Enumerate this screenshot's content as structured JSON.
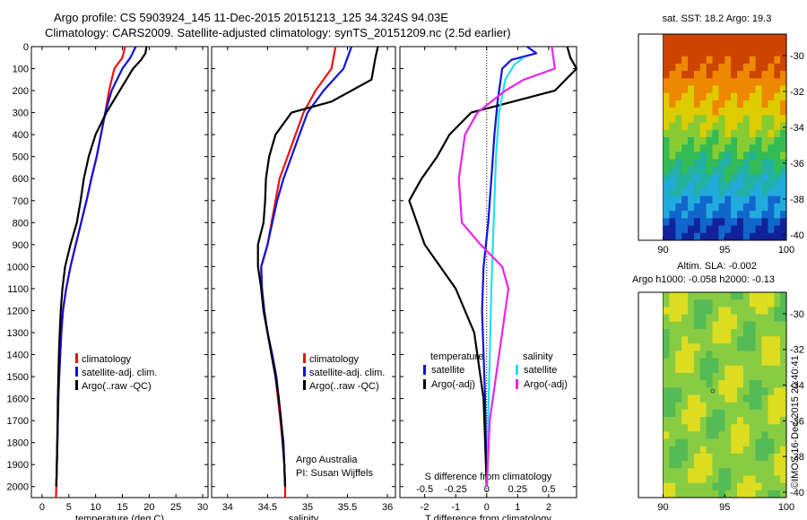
{
  "header": {
    "line1": "Argo profile: CS 5903924_145 11-Dec-2015 20151213_125 34.324S 94.03E",
    "line2": "Climatology: CARS2009. Satellite-adjusted climatology: synTS_20151209.nc (2.5d earlier)"
  },
  "credit": "©IMOS 16-Dec-2015 20:40:41",
  "colors": {
    "climatology": "#ee1111",
    "satellite": "#1111dd",
    "argo": "#000000",
    "cyan": "#22e0ee",
    "magenta": "#ee22ee"
  },
  "chart_data": [
    {
      "type": "line",
      "xlabel": "temperature (deg C)",
      "ylim": [
        2050,
        0
      ],
      "xlim": [
        -2,
        31
      ],
      "xticks": [
        "0",
        "5",
        "10",
        "15",
        "20",
        "25",
        "30"
      ],
      "yticks": [
        "0",
        "100",
        "200",
        "300",
        "400",
        "500",
        "600",
        "700",
        "800",
        "900",
        "1000",
        "1100",
        "1200",
        "1300",
        "1400",
        "1500",
        "1600",
        "1700",
        "1800",
        "1900",
        "2000"
      ],
      "legend": [
        "climatology",
        "satellite-adj. clim.",
        "Argo(..raw -QC)"
      ],
      "series": [
        {
          "name": "climatology",
          "color": "#ee1111",
          "points": [
            [
              15.5,
              0
            ],
            [
              15,
              50
            ],
            [
              13.5,
              100
            ],
            [
              12.5,
              200
            ],
            [
              11.8,
              300
            ],
            [
              11,
              400
            ],
            [
              10.2,
              500
            ],
            [
              9.2,
              600
            ],
            [
              8.3,
              700
            ],
            [
              7.3,
              800
            ],
            [
              6.3,
              900
            ],
            [
              5.3,
              1000
            ],
            [
              4.5,
              1100
            ],
            [
              3.9,
              1200
            ],
            [
              3.6,
              1300
            ],
            [
              3.4,
              1400
            ],
            [
              3.2,
              1500
            ],
            [
              3.05,
              1600
            ],
            [
              2.95,
              1700
            ],
            [
              2.85,
              1800
            ],
            [
              2.75,
              1900
            ],
            [
              2.65,
              2000
            ],
            [
              2.6,
              2050
            ]
          ]
        },
        {
          "name": "satellite-adj. clim.",
          "color": "#1111dd",
          "points": [
            [
              17.5,
              0
            ],
            [
              16.5,
              50
            ],
            [
              15,
              100
            ],
            [
              13,
              200
            ],
            [
              11.8,
              300
            ],
            [
              11,
              400
            ],
            [
              10.2,
              500
            ],
            [
              9.2,
              600
            ],
            [
              8.3,
              700
            ],
            [
              7.3,
              800
            ],
            [
              6.3,
              900
            ],
            [
              5.3,
              1000
            ],
            [
              4.5,
              1100
            ],
            [
              3.9,
              1200
            ],
            [
              3.6,
              1300
            ],
            [
              3.4,
              1400
            ],
            [
              3.2,
              1500
            ],
            [
              3.05,
              1600
            ],
            [
              2.95,
              1700
            ],
            [
              2.85,
              1800
            ],
            [
              2.75,
              1900
            ],
            [
              2.65,
              2000
            ]
          ]
        },
        {
          "name": "Argo(..raw -QC)",
          "color": "#000000",
          "points": [
            [
              19.5,
              0
            ],
            [
              19.3,
              30
            ],
            [
              18.5,
              60
            ],
            [
              17,
              100
            ],
            [
              14.5,
              200
            ],
            [
              12,
              300
            ],
            [
              10,
              400
            ],
            [
              8.7,
              500
            ],
            [
              7.8,
              600
            ],
            [
              7.2,
              700
            ],
            [
              6.5,
              800
            ],
            [
              5.3,
              900
            ],
            [
              4.3,
              1000
            ],
            [
              3.8,
              1100
            ],
            [
              3.5,
              1200
            ],
            [
              3.3,
              1300
            ],
            [
              3.15,
              1400
            ],
            [
              3.05,
              1500
            ],
            [
              2.95,
              1600
            ],
            [
              2.9,
              1700
            ],
            [
              2.82,
              1800
            ],
            [
              2.75,
              1900
            ],
            [
              2.65,
              2000
            ]
          ]
        }
      ]
    },
    {
      "type": "line",
      "xlabel": "salinity",
      "ylim": [
        2050,
        0
      ],
      "xlim": [
        33.8,
        36.1
      ],
      "xticks": [
        "34",
        "34.5",
        "35",
        "35.5",
        "36"
      ],
      "legend": [
        "climatology",
        "satellite-adj. clim.",
        "Argo(..raw -QC)"
      ],
      "annotation": [
        "Argo Australia",
        "PI: Susan Wijffels"
      ],
      "series": [
        {
          "name": "climatology",
          "color": "#ee1111",
          "points": [
            [
              35.35,
              0
            ],
            [
              35.3,
              100
            ],
            [
              35.1,
              200
            ],
            [
              34.95,
              300
            ],
            [
              34.85,
              400
            ],
            [
              34.75,
              500
            ],
            [
              34.65,
              600
            ],
            [
              34.6,
              700
            ],
            [
              34.55,
              800
            ],
            [
              34.5,
              900
            ],
            [
              34.42,
              1000
            ],
            [
              34.42,
              1100
            ],
            [
              34.45,
              1200
            ],
            [
              34.5,
              1300
            ],
            [
              34.55,
              1400
            ],
            [
              34.6,
              1500
            ],
            [
              34.63,
              1600
            ],
            [
              34.66,
              1700
            ],
            [
              34.69,
              1800
            ],
            [
              34.71,
              1900
            ],
            [
              34.72,
              2000
            ],
            [
              34.72,
              2050
            ]
          ]
        },
        {
          "name": "satellite-adj. clim.",
          "color": "#1111dd",
          "points": [
            [
              35.55,
              0
            ],
            [
              35.45,
              100
            ],
            [
              35.2,
              200
            ],
            [
              35.0,
              300
            ],
            [
              34.9,
              400
            ],
            [
              34.8,
              500
            ],
            [
              34.7,
              600
            ],
            [
              34.62,
              700
            ],
            [
              34.56,
              800
            ],
            [
              34.5,
              900
            ],
            [
              34.42,
              1000
            ],
            [
              34.43,
              1100
            ],
            [
              34.46,
              1200
            ],
            [
              34.5,
              1300
            ],
            [
              34.56,
              1400
            ],
            [
              34.61,
              1500
            ],
            [
              34.64,
              1600
            ],
            [
              34.67,
              1700
            ],
            [
              34.7,
              1800
            ],
            [
              34.71,
              1900
            ],
            [
              34.72,
              2000
            ]
          ]
        },
        {
          "name": "Argo(..raw -QC)",
          "color": "#000000",
          "points": [
            [
              35.88,
              0
            ],
            [
              35.85,
              50
            ],
            [
              35.8,
              150
            ],
            [
              35.3,
              250
            ],
            [
              34.8,
              300
            ],
            [
              34.6,
              400
            ],
            [
              34.52,
              500
            ],
            [
              34.48,
              600
            ],
            [
              34.47,
              700
            ],
            [
              34.45,
              800
            ],
            [
              34.38,
              900
            ],
            [
              34.38,
              1000
            ],
            [
              34.42,
              1100
            ],
            [
              34.45,
              1200
            ],
            [
              34.5,
              1300
            ],
            [
              34.55,
              1400
            ],
            [
              34.6,
              1500
            ],
            [
              34.64,
              1600
            ],
            [
              34.67,
              1700
            ],
            [
              34.69,
              1800
            ],
            [
              34.71,
              1900
            ],
            [
              34.72,
              2000
            ]
          ]
        }
      ]
    },
    {
      "type": "line",
      "xlabel": "T difference from climatology",
      "xlabel_top": "S difference from climatology",
      "ylim": [
        2050,
        0
      ],
      "xlim": [
        -2.8,
        2.9
      ],
      "xticks": [
        "-2",
        "-1",
        "0",
        "1",
        "2"
      ],
      "xticks_top": [
        "-0.5",
        "-0.25",
        "0",
        "0.25",
        "0.5"
      ],
      "legend_headers": [
        "temperature",
        "salinity"
      ],
      "legend": [
        "satellite",
        "Argo(-adj)",
        "satellite",
        "Argo(-adj)"
      ],
      "series": [
        {
          "name": "satellite",
          "color": "#1111dd",
          "points": [
            [
              1.3,
              0
            ],
            [
              1.6,
              30
            ],
            [
              0.8,
              60
            ],
            [
              0.5,
              100
            ],
            [
              0.35,
              250
            ],
            [
              0.25,
              400
            ],
            [
              0.15,
              600
            ],
            [
              0.05,
              800
            ],
            [
              -0.1,
              1000
            ],
            [
              -0.15,
              1200
            ],
            [
              -0.1,
              1400
            ],
            [
              -0.05,
              1600
            ],
            [
              0,
              2000
            ]
          ]
        },
        {
          "name": "Argo(-adj)",
          "color": "#000000",
          "points": [
            [
              2.6,
              0
            ],
            [
              2.7,
              50
            ],
            [
              2.9,
              100
            ],
            [
              2.2,
              200
            ],
            [
              -0.5,
              300
            ],
            [
              -1.2,
              400
            ],
            [
              -1.6,
              500
            ],
            [
              -2.1,
              600
            ],
            [
              -2.5,
              700
            ],
            [
              -2.0,
              900
            ],
            [
              -1.0,
              1100
            ],
            [
              -0.4,
              1300
            ],
            [
              -0.1,
              1600
            ],
            [
              0,
              2000
            ]
          ]
        },
        {
          "name": "satellite",
          "color": "#22e0ee",
          "points": [
            [
              1.2,
              50
            ],
            [
              0.9,
              80
            ],
            [
              0.6,
              150
            ],
            [
              0.4,
              300
            ],
            [
              0.3,
              500
            ],
            [
              0.25,
              700
            ],
            [
              0.2,
              900
            ],
            [
              0.15,
              1100
            ],
            [
              0.1,
              1400
            ],
            [
              0.05,
              1700
            ],
            [
              0.02,
              2000
            ]
          ]
        },
        {
          "name": "Argo(-adj)",
          "color": "#ee22ee",
          "points": [
            [
              2.1,
              0
            ],
            [
              2.2,
              100
            ],
            [
              1.2,
              150
            ],
            [
              0.6,
              200
            ],
            [
              -0.3,
              300
            ],
            [
              -0.7,
              400
            ],
            [
              -0.9,
              600
            ],
            [
              -0.8,
              800
            ],
            [
              -0.2,
              900
            ],
            [
              0.5,
              1000
            ],
            [
              0.7,
              1100
            ],
            [
              0.5,
              1300
            ],
            [
              0.3,
              1500
            ],
            [
              0.1,
              1700
            ],
            [
              0,
              2000
            ]
          ]
        }
      ]
    },
    {
      "type": "heatmap",
      "title": "sat. SST: 18.2 Argo: 19.3",
      "xlim": [
        88,
        100
      ],
      "ylim": [
        -40.3,
        -28.8
      ],
      "xticks": [
        "90",
        "95",
        "100"
      ],
      "yticks": [
        "-30",
        "-32",
        "-34",
        "-36",
        "-38",
        "-40"
      ]
    },
    {
      "type": "heatmap",
      "title": "Altim. SLA: -0.002",
      "subtitle": "Argo h1000: -0.058 h2000: -0.13",
      "xlim": [
        88,
        100
      ],
      "ylim": [
        -40.3,
        -28.8
      ],
      "xticks": [
        "90",
        "95",
        "100"
      ],
      "yticks": [
        "-30",
        "-32",
        "-34",
        "-36",
        "-38",
        "-40"
      ]
    }
  ]
}
